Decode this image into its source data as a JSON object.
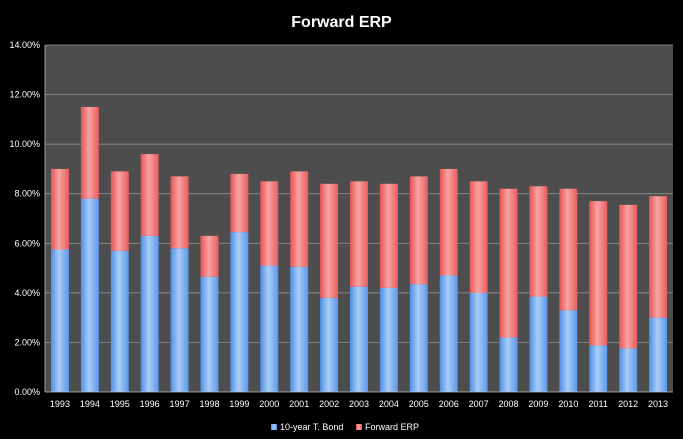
{
  "chart_data": {
    "type": "bar",
    "stacked": true,
    "title": "Forward ERP",
    "xlabel": "",
    "ylabel": "",
    "ylim": [
      0,
      14
    ],
    "y_tick_format": "percent_2dp",
    "yticks": [
      "0.00%",
      "2.00%",
      "4.00%",
      "6.00%",
      "8.00%",
      "10.00%",
      "12.00%",
      "14.00%"
    ],
    "grid": true,
    "legend_position": "bottom",
    "categories": [
      "1993",
      "1994",
      "1995",
      "1996",
      "1997",
      "1998",
      "1999",
      "2000",
      "2001",
      "2002",
      "2003",
      "2004",
      "2005",
      "2006",
      "2007",
      "2008",
      "2009",
      "2010",
      "2011",
      "2012",
      "2013"
    ],
    "series": [
      {
        "name": "10-year T. Bond",
        "color": "#7fb2f0",
        "values": [
          5.75,
          7.8,
          5.7,
          6.3,
          5.8,
          4.65,
          6.45,
          5.1,
          5.05,
          3.8,
          4.25,
          4.2,
          4.35,
          4.7,
          4.0,
          2.2,
          3.85,
          3.3,
          1.88,
          1.76,
          3.0
        ]
      },
      {
        "name": "Forward ERP",
        "color": "#f07070",
        "values": [
          3.25,
          3.7,
          3.2,
          3.3,
          2.9,
          1.65,
          2.35,
          3.4,
          3.85,
          4.6,
          4.25,
          4.2,
          4.35,
          4.3,
          4.5,
          6.0,
          4.45,
          4.9,
          5.82,
          5.79,
          4.9
        ]
      }
    ]
  }
}
